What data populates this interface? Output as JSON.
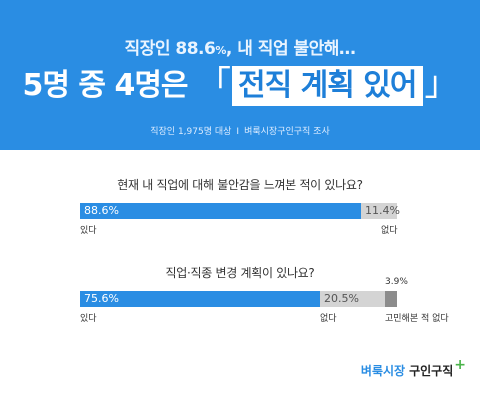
{
  "header": {
    "subtitle_prefix": "직장인 ",
    "subtitle_pct": "88.6",
    "subtitle_pct_unit": "%",
    "subtitle_suffix": ", 내 직업 불안해…",
    "headline_prefix": "5명 중 4명은",
    "headline_open": "「",
    "headline_highlight": "전직 계획 있어",
    "headline_close": "」",
    "source_left": "직장인 1,975명 대상",
    "source_sep": "I",
    "source_right": "벼룩시장구인구직 조사"
  },
  "colors": {
    "header_bg": "#2a8de3",
    "bar_primary": "#2a8de3",
    "bar_secondary": "#d4d4d4",
    "bar_tertiary": "#8c8c8c"
  },
  "chart_data": [
    {
      "type": "bar",
      "orientation": "horizontal-stacked",
      "title": "현재 내 직업에 대해 불안감을 느껴본 적이 있나요?",
      "unit": "%",
      "segments": [
        {
          "label": "있다",
          "value": 88.6,
          "display": "88.6%"
        },
        {
          "label": "없다",
          "value": 11.4,
          "display": "11.4%"
        }
      ]
    },
    {
      "type": "bar",
      "orientation": "horizontal-stacked",
      "title": "직업·직종 변경 계획이 있나요?",
      "unit": "%",
      "segments": [
        {
          "label": "있다",
          "value": 75.6,
          "display": "75.6%"
        },
        {
          "label": "없다",
          "value": 20.5,
          "display": "20.5%"
        },
        {
          "label": "고민해본 적 없다",
          "value": 3.9,
          "display": "3.9%"
        }
      ]
    }
  ],
  "logo": {
    "brand": "벼룩시장",
    "service": "구인구직",
    "plus": "+"
  }
}
